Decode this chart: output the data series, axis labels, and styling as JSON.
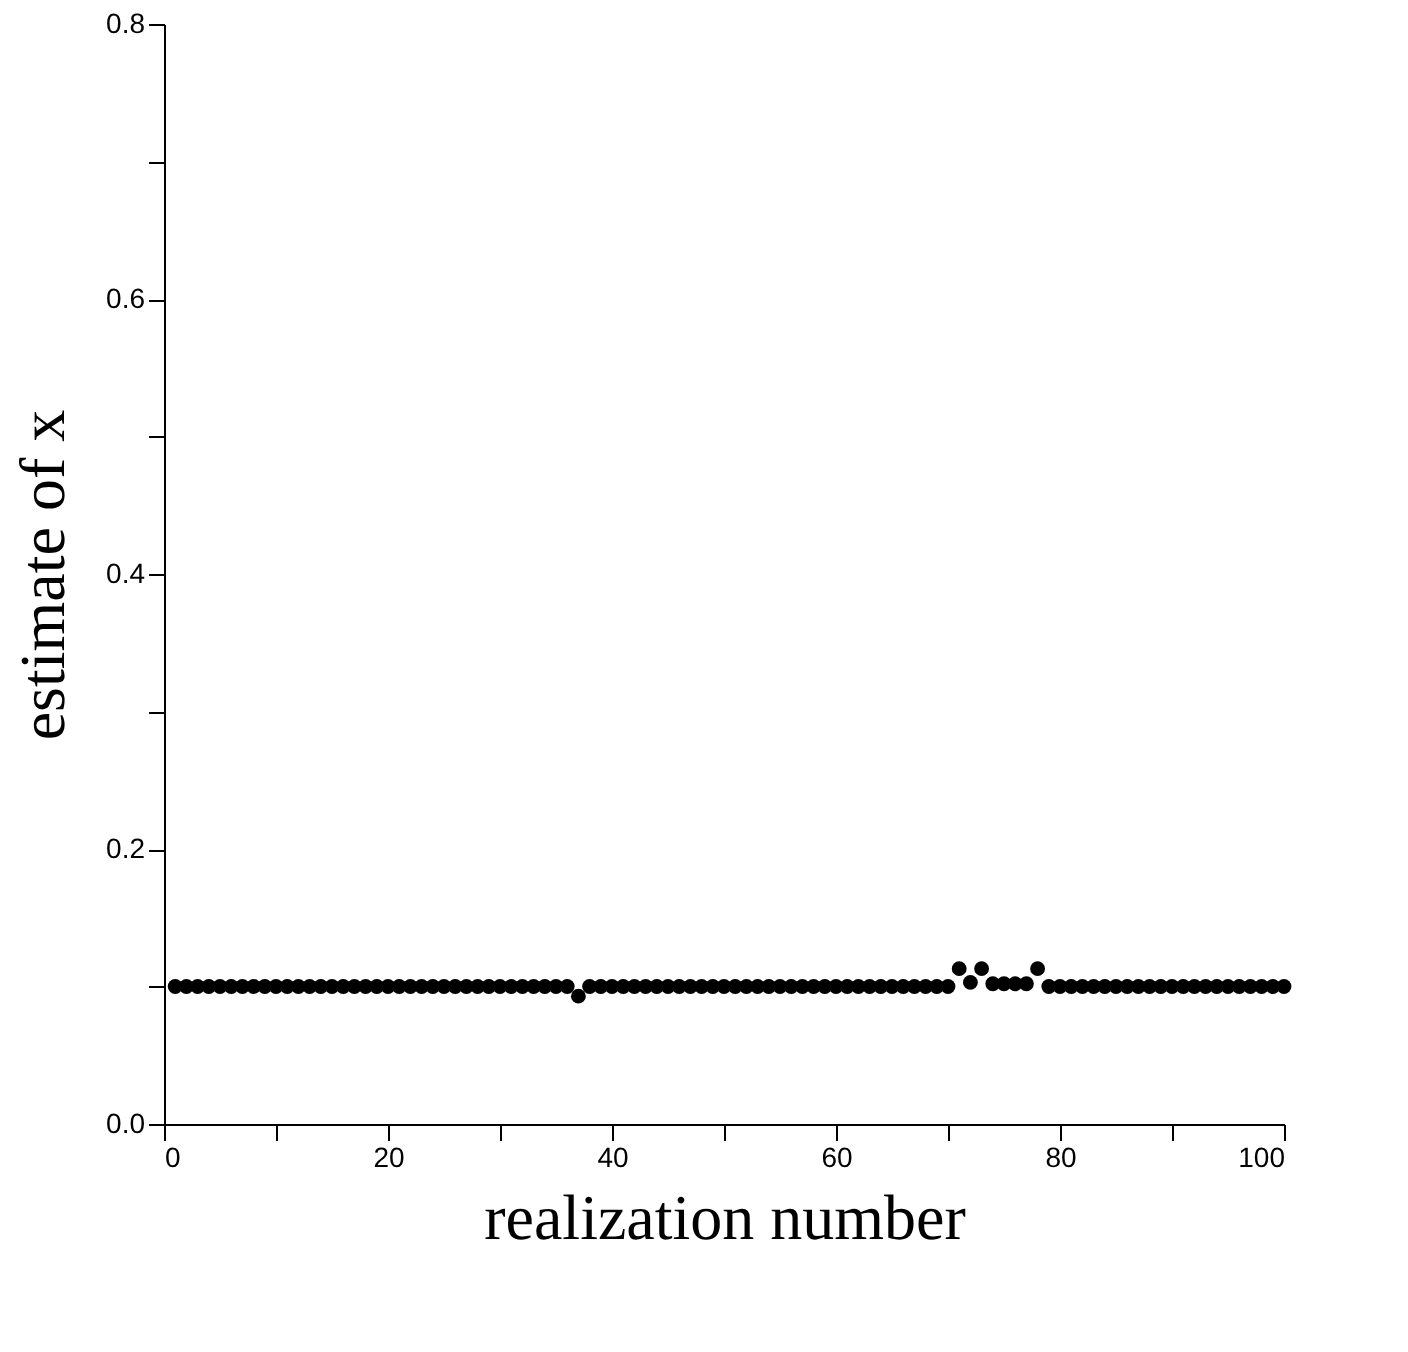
{
  "chart_data": {
    "type": "scatter",
    "xlabel": "realization number",
    "ylabel": "estimate of x",
    "x": [
      1,
      2,
      3,
      4,
      5,
      6,
      7,
      8,
      9,
      10,
      11,
      12,
      13,
      14,
      15,
      16,
      17,
      18,
      19,
      20,
      21,
      22,
      23,
      24,
      25,
      26,
      27,
      28,
      29,
      30,
      31,
      32,
      33,
      34,
      35,
      36,
      37,
      38,
      39,
      40,
      41,
      42,
      43,
      44,
      45,
      46,
      47,
      48,
      49,
      50,
      51,
      52,
      53,
      54,
      55,
      56,
      57,
      58,
      59,
      60,
      61,
      62,
      63,
      64,
      65,
      66,
      67,
      68,
      69,
      70,
      71,
      72,
      73,
      74,
      75,
      76,
      77,
      78,
      79,
      80,
      81,
      82,
      83,
      84,
      85,
      86,
      87,
      88,
      89,
      90,
      91,
      92,
      93,
      94,
      95,
      96,
      97,
      98,
      99,
      100
    ],
    "series": [
      {
        "color": "#000000",
        "values": [
          0.1,
          0.1,
          0.1,
          0.1,
          0.1,
          0.1,
          0.1,
          0.1,
          0.1,
          0.1,
          0.1,
          0.1,
          0.1,
          0.1,
          0.1,
          0.1,
          0.1,
          0.1,
          0.1,
          0.1,
          0.1,
          0.1,
          0.1,
          0.1,
          0.1,
          0.1,
          0.1,
          0.1,
          0.1,
          0.1,
          0.1,
          0.1,
          0.1,
          0.1,
          0.1,
          0.1,
          0.093,
          0.1,
          0.1,
          0.1,
          0.1,
          0.1,
          0.1,
          0.1,
          0.1,
          0.1,
          0.1,
          0.1,
          0.1,
          0.1,
          0.1,
          0.1,
          0.1,
          0.1,
          0.1,
          0.1,
          0.1,
          0.1,
          0.1,
          0.1,
          0.1,
          0.1,
          0.1,
          0.1,
          0.1,
          0.1,
          0.1,
          0.1,
          0.1,
          0.1,
          0.113,
          0.103,
          0.113,
          0.102,
          0.102,
          0.102,
          0.102,
          0.113,
          0.1,
          0.1,
          0.1,
          0.1,
          0.1,
          0.1,
          0.1,
          0.1,
          0.1,
          0.1,
          0.1,
          0.1,
          0.1,
          0.1,
          0.1,
          0.1,
          0.1,
          0.1,
          0.1,
          0.1,
          0.1,
          0.1
        ]
      }
    ],
    "marker": "circle",
    "grid": false,
    "xlim": [
      0,
      100
    ],
    "xticks": [
      0,
      {
        "value": 10,
        "label": null
      },
      20,
      {
        "value": 30,
        "label": null
      },
      40,
      {
        "value": 50,
        "label": null
      },
      60,
      {
        "value": 70,
        "label": null
      },
      80,
      {
        "value": 90,
        "label": null
      },
      100
    ],
    "ylim": [
      0,
      0.8
    ],
    "yticks": [
      {
        "value": 0,
        "label": "0.0"
      },
      {
        "value": 0.1,
        "label": null
      },
      {
        "value": 0.2,
        "label": "0.2"
      },
      {
        "value": 0.3,
        "label": null
      },
      {
        "value": 0.4,
        "label": "0.4"
      },
      {
        "value": 0.5,
        "label": null
      },
      {
        "value": 0.6,
        "label": "0.6"
      },
      {
        "value": 0.7,
        "label": null
      },
      {
        "value": 0.8,
        "label": "0.8"
      }
    ]
  }
}
